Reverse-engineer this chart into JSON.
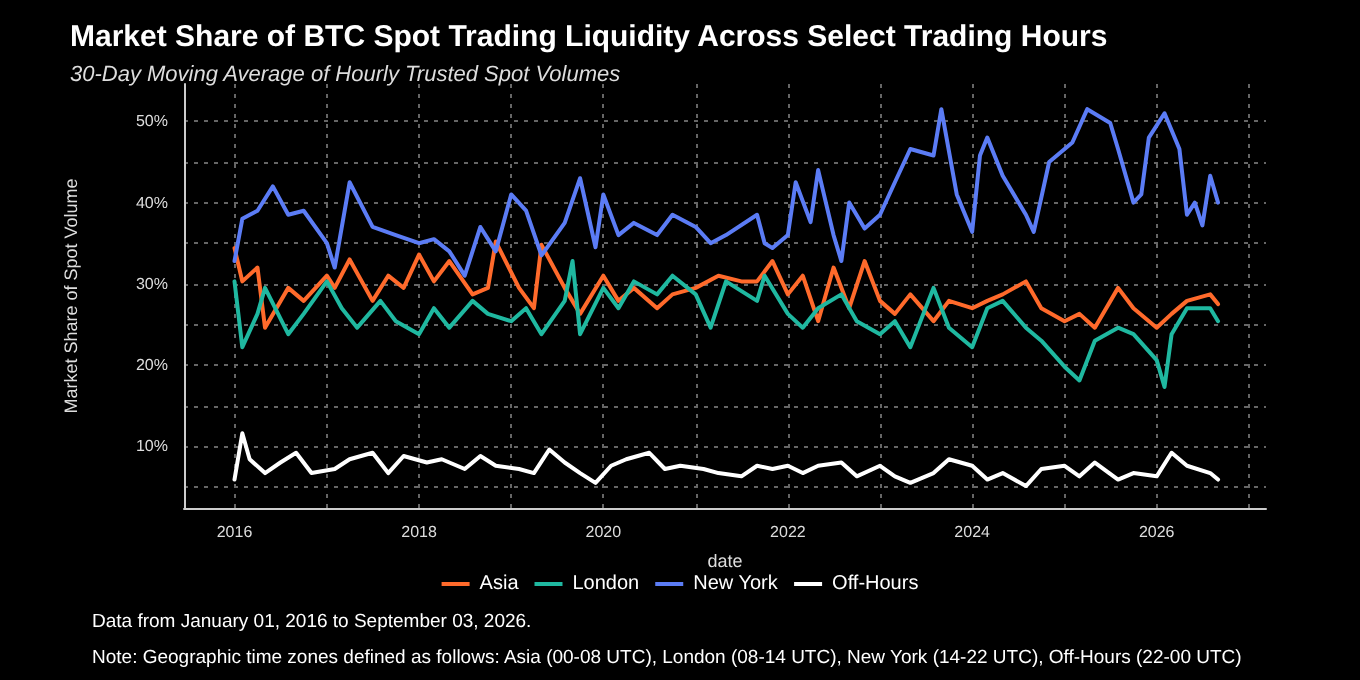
{
  "chart_data": {
    "type": "line",
    "title": "Market Share of BTC Spot Trading Liquidity Across Select Trading Hours",
    "subtitle": "30-Day Moving Average of Hourly Trusted Spot Volumes",
    "xlabel": "date",
    "ylabel": "Market Share of Spot Volume",
    "annotations": [
      "Data from January 01, 2016 to September 03, 2026.",
      "Note: Geographic time zones defined as follows: Asia (00-08 UTC), London (08-14 UTC), New York (14-22 UTC), Off-Hours (22-00 UTC)"
    ],
    "series": [
      {
        "name": "Asia",
        "color": "#ff6a2b",
        "x": [
          "2016-01",
          "2016-02",
          "2016-04",
          "2016-05",
          "2016-08",
          "2016-10",
          "2017-01",
          "2017-02",
          "2017-04",
          "2017-07",
          "2017-09",
          "2017-11",
          "2018-01",
          "2018-03",
          "2018-05",
          "2018-08",
          "2018-10",
          "2018-11",
          "2019-02",
          "2019-04",
          "2019-05",
          "2019-08",
          "2019-10",
          "2020-01",
          "2020-03",
          "2020-05",
          "2020-08",
          "2020-10",
          "2021-01",
          "2021-04",
          "2021-07",
          "2021-09",
          "2021-11",
          "2022-01",
          "2022-03",
          "2022-05",
          "2022-07",
          "2022-09",
          "2022-11",
          "2023-01",
          "2023-03",
          "2023-05",
          "2023-08",
          "2023-10",
          "2024-01",
          "2024-03",
          "2024-05",
          "2024-08",
          "2024-10",
          "2025-01",
          "2025-03",
          "2025-05",
          "2025-08",
          "2025-10",
          "2026-01",
          "2026-03",
          "2026-05",
          "2026-08",
          "2026-09"
        ],
        "values": [
          34.4,
          30.3,
          32,
          24.6,
          29.5,
          27.9,
          31,
          29.5,
          33,
          27.9,
          31,
          29.5,
          33.6,
          30.3,
          32.8,
          28.7,
          29.5,
          35.2,
          29.5,
          27,
          34.8,
          29.5,
          26.3,
          31,
          27.9,
          29.5,
          27,
          28.7,
          29.5,
          31,
          30.3,
          30.3,
          32.8,
          28.7,
          31,
          25.4,
          32,
          27,
          32.8,
          27.9,
          26.3,
          28.7,
          25.4,
          27.9,
          27,
          27.9,
          28.7,
          30.3,
          27,
          25.4,
          26.3,
          24.6,
          29.5,
          27,
          24.6,
          26.3,
          27.9,
          28.7,
          27.5
        ]
      },
      {
        "name": "London",
        "color": "#1fb8a0",
        "x": [
          "2016-01",
          "2016-02",
          "2016-04",
          "2016-05",
          "2016-08",
          "2016-10",
          "2017-01",
          "2017-03",
          "2017-05",
          "2017-08",
          "2017-10",
          "2018-01",
          "2018-03",
          "2018-05",
          "2018-08",
          "2018-10",
          "2019-01",
          "2019-03",
          "2019-05",
          "2019-08",
          "2019-09",
          "2019-10",
          "2020-01",
          "2020-03",
          "2020-05",
          "2020-08",
          "2020-10",
          "2021-01",
          "2021-03",
          "2021-05",
          "2021-09",
          "2021-10",
          "2022-01",
          "2022-03",
          "2022-05",
          "2022-08",
          "2022-10",
          "2023-01",
          "2023-03",
          "2023-05",
          "2023-08",
          "2023-10",
          "2024-01",
          "2024-03",
          "2024-05",
          "2024-08",
          "2024-10",
          "2025-01",
          "2025-03",
          "2025-05",
          "2025-08",
          "2025-10",
          "2026-01",
          "2026-02",
          "2026-03",
          "2026-05",
          "2026-08",
          "2026-09"
        ],
        "values": [
          30.3,
          22.2,
          26.3,
          29.5,
          23.8,
          26.3,
          30.3,
          27,
          24.6,
          27.9,
          25.4,
          23.8,
          27,
          24.6,
          27.9,
          26.3,
          25.4,
          27,
          23.8,
          27.9,
          32.8,
          23.8,
          29.5,
          27,
          30.3,
          28.7,
          31,
          28.7,
          24.6,
          30.3,
          27.9,
          31,
          26.3,
          24.6,
          27,
          28.7,
          25.4,
          23.8,
          25.4,
          22.2,
          29.5,
          24.6,
          22.2,
          27,
          27.9,
          24.6,
          23,
          19.8,
          18.1,
          23,
          24.6,
          23.8,
          20.6,
          17.3,
          23.8,
          27,
          27,
          25.4
        ]
      },
      {
        "name": "New York",
        "color": "#5b7cf5",
        "x": [
          "2016-01",
          "2016-02",
          "2016-04",
          "2016-06",
          "2016-08",
          "2016-10",
          "2017-01",
          "2017-02",
          "2017-04",
          "2017-07",
          "2017-10",
          "2018-01",
          "2018-03",
          "2018-05",
          "2018-07",
          "2018-09",
          "2018-11",
          "2019-01",
          "2019-03",
          "2019-05",
          "2019-08",
          "2019-10",
          "2019-12",
          "2020-01",
          "2020-03",
          "2020-05",
          "2020-08",
          "2020-10",
          "2021-01",
          "2021-03",
          "2021-05",
          "2021-09",
          "2021-10",
          "2021-11",
          "2022-01",
          "2022-02",
          "2022-04",
          "2022-05",
          "2022-07",
          "2022-08",
          "2022-09",
          "2022-11",
          "2023-01",
          "2023-03",
          "2023-05",
          "2023-08",
          "2023-09",
          "2023-11",
          "2024-01",
          "2024-02",
          "2024-03",
          "2024-05",
          "2024-08",
          "2024-09",
          "2024-11",
          "2025-02",
          "2025-04",
          "2025-07",
          "2025-08",
          "2025-10",
          "2025-11",
          "2025-12",
          "2026-02",
          "2026-04",
          "2026-05",
          "2026-06",
          "2026-07",
          "2026-08",
          "2026-09"
        ],
        "values": [
          32.8,
          38,
          39,
          42,
          38.5,
          39,
          35,
          32,
          42.5,
          37,
          36,
          35,
          35.5,
          34,
          31,
          37,
          34,
          41,
          39,
          33.5,
          37.5,
          43,
          34.5,
          41,
          36,
          37.5,
          36,
          38.5,
          37,
          35,
          36,
          38.5,
          35,
          34.4,
          36,
          42.5,
          37.6,
          44,
          36,
          32.8,
          40,
          36.8,
          38.5,
          42.5,
          46.6,
          45.8,
          51.5,
          41,
          36.4,
          45.8,
          48,
          43.3,
          38.5,
          36.4,
          45,
          47.4,
          51.5,
          49.8,
          46.6,
          40,
          41,
          48,
          51,
          46.6,
          38.5,
          40,
          37.2,
          43.3,
          40
        ]
      },
      {
        "name": "Off-Hours",
        "color": "#ffffff",
        "x": [
          "2016-01",
          "2016-02",
          "2016-03",
          "2016-05",
          "2016-07",
          "2016-09",
          "2016-11",
          "2017-02",
          "2017-04",
          "2017-07",
          "2017-09",
          "2017-11",
          "2018-02",
          "2018-04",
          "2018-07",
          "2018-09",
          "2018-11",
          "2019-02",
          "2019-04",
          "2019-06",
          "2019-08",
          "2019-10",
          "2019-12",
          "2020-02",
          "2020-04",
          "2020-07",
          "2020-09",
          "2020-11",
          "2021-02",
          "2021-04",
          "2021-07",
          "2021-09",
          "2021-11",
          "2022-01",
          "2022-03",
          "2022-05",
          "2022-08",
          "2022-10",
          "2023-01",
          "2023-03",
          "2023-05",
          "2023-08",
          "2023-10",
          "2024-01",
          "2024-03",
          "2024-05",
          "2024-08",
          "2024-10",
          "2025-01",
          "2025-03",
          "2025-05",
          "2025-08",
          "2025-10",
          "2026-01",
          "2026-03",
          "2026-05",
          "2026-08",
          "2026-09"
        ],
        "values": [
          5.9,
          11.6,
          8.4,
          6.7,
          8,
          9.2,
          6.7,
          7.2,
          8.4,
          9.2,
          6.7,
          8.8,
          8,
          8.4,
          7.2,
          8.8,
          7.6,
          7.2,
          6.7,
          9.6,
          8,
          6.7,
          5.5,
          7.6,
          8.4,
          9.2,
          7.2,
          7.6,
          7.2,
          6.7,
          6.3,
          7.6,
          7.2,
          7.6,
          6.7,
          7.6,
          8,
          6.3,
          7.6,
          6.3,
          5.5,
          6.7,
          8.4,
          7.6,
          5.9,
          6.7,
          5.1,
          7.2,
          7.6,
          6.3,
          8,
          5.9,
          6.7,
          6.3,
          9.2,
          7.6,
          6.7,
          5.9
        ]
      }
    ],
    "xlim": [
      "2015-06-15",
      "2027-03-10"
    ],
    "xticks": [
      {
        "value": "2016-01-01",
        "label": "2016"
      },
      {
        "value": "2017-01-01",
        "label": null
      },
      {
        "value": "2018-01-01",
        "label": "2018"
      },
      {
        "value": "2019-01-01",
        "label": null
      },
      {
        "value": "2020-01-01",
        "label": "2020"
      },
      {
        "value": "2021-01-01",
        "label": null
      },
      {
        "value": "2022-01-01",
        "label": "2022"
      },
      {
        "value": "2023-01-01",
        "label": null
      },
      {
        "value": "2024-01-01",
        "label": "2024"
      },
      {
        "value": "2025-01-01",
        "label": null
      },
      {
        "value": "2026-01-01",
        "label": "2026"
      },
      {
        "value": "2027-01-01",
        "label": null
      }
    ],
    "ylim": [
      2.4,
      54.6
    ],
    "yticks": [
      {
        "value": 5,
        "label": null
      },
      {
        "value": 10,
        "label": "10%"
      },
      {
        "value": 15,
        "label": null
      },
      {
        "value": 20,
        "label": "20%"
      },
      {
        "value": 25,
        "label": null
      },
      {
        "value": 30,
        "label": "30%"
      },
      {
        "value": 35,
        "label": null
      },
      {
        "value": 40,
        "label": "40%"
      },
      {
        "value": 45,
        "label": null
      },
      {
        "value": 50,
        "label": "50%"
      }
    ],
    "grid": true,
    "legend": "bottom",
    "marker": "none",
    "line_style": "solid"
  }
}
